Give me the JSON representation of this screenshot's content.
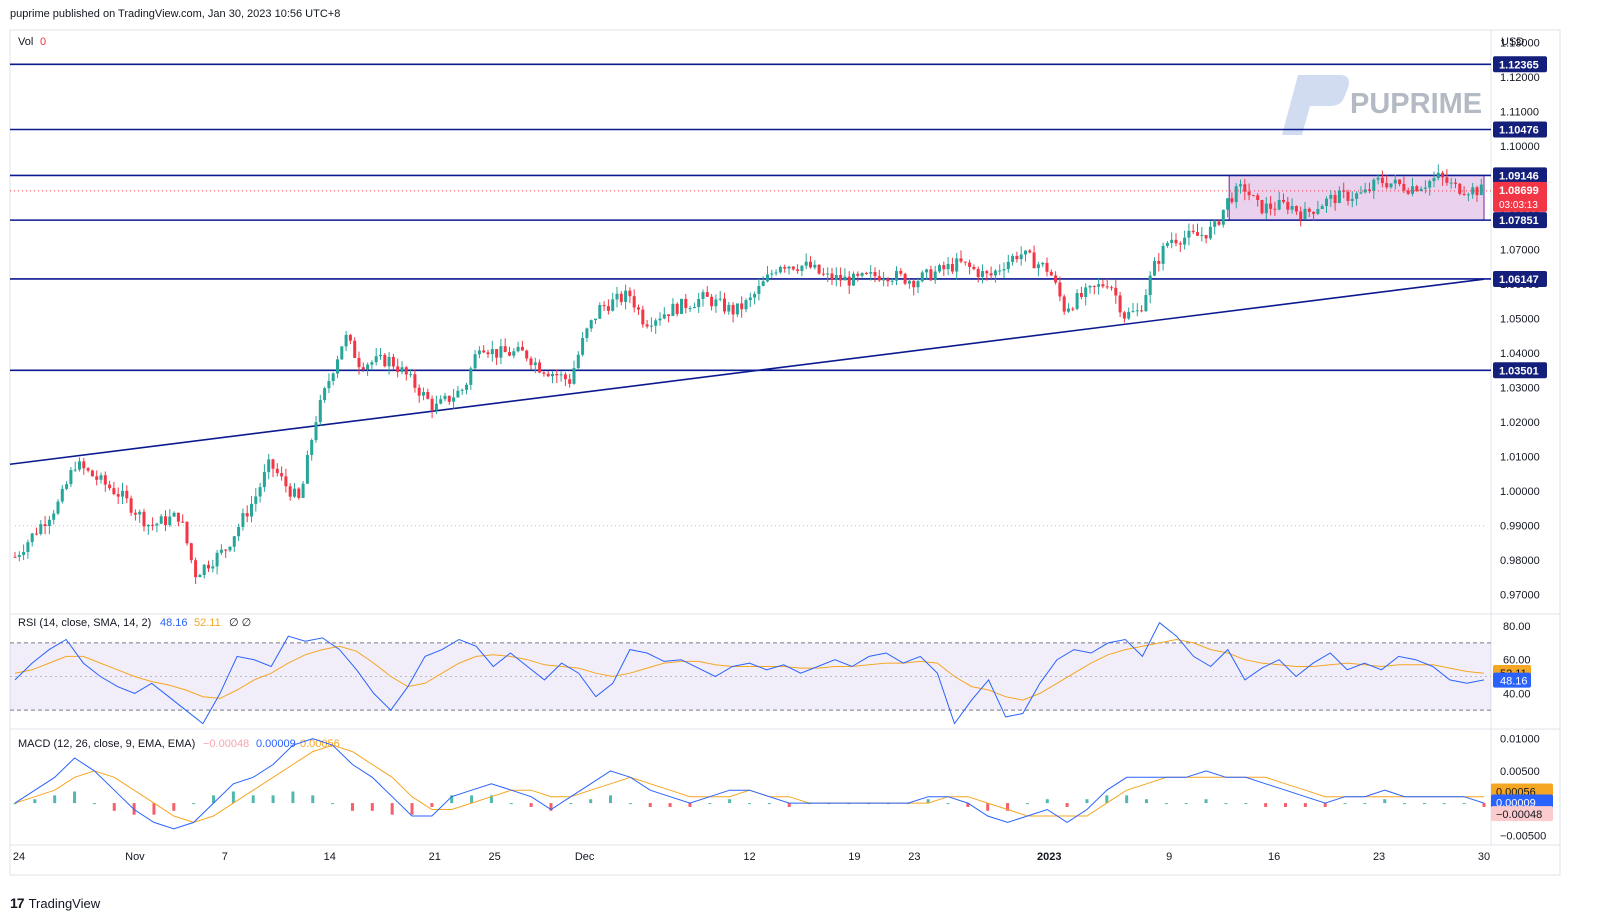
{
  "header": {
    "published_text": "puprime published on TradingView.com, Jan 30, 2023 10:56 UTC+8"
  },
  "footer": {
    "logo_glyph": "17",
    "brand": "TradingView"
  },
  "watermark": {
    "text": "PUPRIME"
  },
  "colors": {
    "up": "#26a69a",
    "down": "#f23645",
    "level_line": "#0c1a8f",
    "rsi_line": "#2962ff",
    "rsi_ma": "#f5a623",
    "macd_line": "#2962ff",
    "signal_line": "#f5a623",
    "range_box": "#e1bee7"
  },
  "chart_data": [
    {
      "type": "candlestick",
      "pair_currency": "USD",
      "vol_label": "Vol",
      "vol_value": "0",
      "ylim": [
        0.965,
        1.133
      ],
      "y_ticks": [
        "1.13000",
        "1.12000",
        "1.11000",
        "1.10000",
        "1.09000",
        "1.08000",
        "1.07000",
        "1.06000",
        "1.05000",
        "1.04000",
        "1.03000",
        "1.02000",
        "1.01000",
        "1.00000",
        "0.99000",
        "0.98000",
        "0.97000"
      ],
      "x_ticks": [
        "24",
        "Nov",
        "7",
        "14",
        "21",
        "25",
        "Dec",
        "12",
        "19",
        "23",
        "2023",
        "9",
        "16",
        "23",
        "30"
      ],
      "horizontal_levels": [
        {
          "value": 1.12365,
          "label": "1.12365"
        },
        {
          "value": 1.10476,
          "label": "1.10476"
        },
        {
          "value": 1.09146,
          "label": "1.09146"
        },
        {
          "value": 1.07851,
          "label": "1.07851"
        },
        {
          "value": 1.06147,
          "label": "1.06147"
        },
        {
          "value": 1.03501,
          "label": "1.03501"
        }
      ],
      "current_price": {
        "value": 1.08699,
        "label": "1.08699",
        "countdown": "03:03:13"
      },
      "trendline": {
        "start": {
          "date": "Oct 24",
          "price": 1.0078
        },
        "end": {
          "date": "Jan 30",
          "price": 1.0614
        }
      },
      "range_box": {
        "from": "Jan 13",
        "to": "Jan 30",
        "top": 1.09146,
        "bottom": 1.07851
      },
      "close_path": [
        {
          "date": "Oct 24",
          "close": 0.981
        },
        {
          "date": "Oct 27",
          "close": 0.997
        },
        {
          "date": "Oct 28",
          "close": 1.008
        },
        {
          "date": "Oct 31",
          "close": 0.999
        },
        {
          "date": "Nov 2",
          "close": 0.99
        },
        {
          "date": "Nov 4",
          "close": 0.993
        },
        {
          "date": "Nov 5",
          "close": 0.976
        },
        {
          "date": "Nov 7",
          "close": 0.983
        },
        {
          "date": "Nov 9",
          "close": 0.998
        },
        {
          "date": "Nov 10",
          "close": 1.008
        },
        {
          "date": "Nov 11",
          "close": 1.002
        },
        {
          "date": "Nov 12",
          "close": 0.997
        },
        {
          "date": "Nov 13",
          "close": 1.02
        },
        {
          "date": "Nov 14",
          "close": 1.033
        },
        {
          "date": "Nov 15",
          "close": 1.045
        },
        {
          "date": "Nov 16",
          "close": 1.037
        },
        {
          "date": "Nov 18",
          "close": 1.038
        },
        {
          "date": "Nov 19",
          "close": 1.034
        },
        {
          "date": "Nov 21",
          "close": 1.024
        },
        {
          "date": "Nov 23",
          "close": 1.03
        },
        {
          "date": "Nov 24",
          "close": 1.043
        },
        {
          "date": "Nov 25",
          "close": 1.04
        },
        {
          "date": "Nov 27",
          "close": 1.04
        },
        {
          "date": "Nov 28",
          "close": 1.036
        },
        {
          "date": "Nov 30",
          "close": 1.032
        },
        {
          "date": "Dec 1",
          "close": 1.045
        },
        {
          "date": "Dec 2",
          "close": 1.053
        },
        {
          "date": "Dec 4",
          "close": 1.057
        },
        {
          "date": "Dec 5",
          "close": 1.049
        },
        {
          "date": "Dec 7",
          "close": 1.053
        },
        {
          "date": "Dec 9",
          "close": 1.056
        },
        {
          "date": "Dec 11",
          "close": 1.052
        },
        {
          "date": "Dec 12",
          "close": 1.055
        },
        {
          "date": "Dec 14",
          "close": 1.066
        },
        {
          "date": "Dec 16",
          "close": 1.065
        },
        {
          "date": "Dec 17",
          "close": 1.062
        },
        {
          "date": "Dec 19",
          "close": 1.061
        },
        {
          "date": "Dec 21",
          "close": 1.063
        },
        {
          "date": "Dec 23",
          "close": 1.061
        },
        {
          "date": "Dec 26",
          "close": 1.066
        },
        {
          "date": "Dec 28",
          "close": 1.062
        },
        {
          "date": "Dec 29",
          "close": 1.066
        },
        {
          "date": "Dec 30",
          "close": 1.069
        },
        {
          "date": "Jan 1",
          "close": 1.064
        },
        {
          "date": "Jan 2",
          "close": 1.053
        },
        {
          "date": "Jan 3",
          "close": 1.056
        },
        {
          "date": "Jan 5",
          "close": 1.061
        },
        {
          "date": "Jan 6",
          "close": 1.051
        },
        {
          "date": "Jan 7",
          "close": 1.052
        },
        {
          "date": "Jan 8",
          "close": 1.065
        },
        {
          "date": "Jan 9",
          "close": 1.073
        },
        {
          "date": "Jan 11",
          "close": 1.074
        },
        {
          "date": "Jan 12",
          "close": 1.076
        },
        {
          "date": "Jan 13",
          "close": 1.085
        },
        {
          "date": "Jan 14",
          "close": 1.088
        },
        {
          "date": "Jan 15",
          "close": 1.082
        },
        {
          "date": "Jan 17",
          "close": 1.083
        },
        {
          "date": "Jan 18",
          "close": 1.08
        },
        {
          "date": "Jan 19",
          "close": 1.083
        },
        {
          "date": "Jan 20",
          "close": 1.085
        },
        {
          "date": "Jan 22",
          "close": 1.086
        },
        {
          "date": "Jan 23",
          "close": 1.09
        },
        {
          "date": "Jan 25",
          "close": 1.088
        },
        {
          "date": "Jan 26",
          "close": 1.089
        },
        {
          "date": "Jan 27",
          "close": 1.091
        },
        {
          "date": "Jan 28",
          "close": 1.088
        },
        {
          "date": "Jan 30",
          "close": 1.087
        }
      ]
    },
    {
      "type": "line",
      "indicator": "RSI",
      "title": "RSI (14, close, SMA, 14, 2)",
      "rsi_value": "48.16",
      "ma_value": "52.11",
      "extra": "∅ ∅",
      "ylim": [
        20,
        86
      ],
      "y_ticks": [
        "80.00",
        "60.00",
        "40.00"
      ],
      "bands": [
        70,
        30
      ],
      "series": [
        {
          "name": "RSI",
          "values": [
            48,
            58,
            66,
            72,
            58,
            50,
            44,
            40,
            46,
            38,
            30,
            22,
            40,
            62,
            60,
            56,
            74,
            71,
            73,
            66,
            54,
            40,
            30,
            44,
            62,
            66,
            72,
            68,
            56,
            64,
            56,
            48,
            58,
            52,
            38,
            46,
            66,
            64,
            59,
            60,
            55,
            50,
            56,
            58,
            54,
            57,
            52,
            56,
            60,
            56,
            62,
            64,
            58,
            62,
            52,
            22,
            36,
            48,
            26,
            28,
            46,
            60,
            66,
            64,
            70,
            72,
            62,
            82,
            74,
            62,
            56,
            66,
            48,
            55,
            60,
            50,
            58,
            64,
            54,
            58,
            54,
            62,
            60,
            56,
            48,
            46,
            48
          ]
        },
        {
          "name": "RSI-based MA",
          "values": [
            52,
            54,
            58,
            62,
            62,
            58,
            54,
            50,
            47,
            45,
            42,
            38,
            37,
            42,
            48,
            52,
            58,
            63,
            66,
            68,
            65,
            58,
            50,
            44,
            46,
            52,
            58,
            62,
            63,
            62,
            60,
            57,
            56,
            55,
            52,
            50,
            52,
            55,
            58,
            59,
            59,
            57,
            56,
            56,
            56,
            56,
            55,
            55,
            56,
            56,
            57,
            58,
            58,
            59,
            58,
            50,
            44,
            42,
            38,
            36,
            40,
            46,
            52,
            58,
            63,
            66,
            68,
            70,
            72,
            70,
            66,
            64,
            60,
            58,
            57,
            56,
            56,
            57,
            58,
            57,
            56,
            57,
            57,
            57,
            55,
            53,
            52
          ]
        }
      ]
    },
    {
      "type": "line",
      "indicator": "MACD",
      "title": "MACD (12, 26, close, 9, EMA, EMA)",
      "histogram_value": "−0.00048",
      "macd_value": "0.00009",
      "signal_value": "0.00056",
      "ylim": [
        -0.0062,
        0.0112
      ],
      "y_ticks": [
        "0.01000",
        "0.00500",
        "−0.00500"
      ],
      "price_labels": [
        "0.00056",
        "0.00009",
        "−0.00048"
      ],
      "series": [
        {
          "name": "MACD",
          "values": [
            0,
            0.002,
            0.004,
            0.007,
            0.005,
            0.002,
            -0.001,
            -0.003,
            -0.004,
            -0.003,
            0.0,
            0.003,
            0.004,
            0.006,
            0.009,
            0.01,
            0.009,
            0.006,
            0.004,
            0.001,
            -0.002,
            -0.002,
            0.001,
            0.002,
            0.003,
            0.002,
            0.001,
            -0.001,
            0.001,
            0.003,
            0.005,
            0.004,
            0.002,
            0.001,
            0.0,
            0.001,
            0.002,
            0.002,
            0.001,
            0.0,
            0.0,
            0.0,
            0.0,
            0.0,
            0.0,
            0.0,
            0.001,
            0.001,
            0.0,
            -0.002,
            -0.003,
            -0.002,
            -0.001,
            -0.003,
            -0.001,
            0.002,
            0.004,
            0.004,
            0.004,
            0.004,
            0.005,
            0.004,
            0.004,
            0.003,
            0.002,
            0.001,
            0.0,
            0.001,
            0.001,
            0.002,
            0.001,
            0.001,
            0.001,
            0.001,
            0.0
          ]
        },
        {
          "name": "Signal",
          "values": [
            0,
            0.001,
            0.002,
            0.004,
            0.005,
            0.004,
            0.002,
            0.0,
            -0.002,
            -0.003,
            -0.002,
            0.0,
            0.002,
            0.004,
            0.006,
            0.008,
            0.009,
            0.008,
            0.006,
            0.004,
            0.001,
            -0.001,
            -0.001,
            0.0,
            0.001,
            0.002,
            0.002,
            0.001,
            0.001,
            0.002,
            0.003,
            0.004,
            0.003,
            0.002,
            0.001,
            0.001,
            0.001,
            0.002,
            0.001,
            0.001,
            0.0,
            0.0,
            0.0,
            0.0,
            0.0,
            0.0,
            0.0,
            0.001,
            0.001,
            0.0,
            -0.001,
            -0.002,
            -0.002,
            -0.002,
            -0.002,
            0.0,
            0.002,
            0.003,
            0.004,
            0.004,
            0.004,
            0.004,
            0.004,
            0.004,
            0.003,
            0.002,
            0.001,
            0.001,
            0.001,
            0.001,
            0.001,
            0.001,
            0.001,
            0.001,
            0.001
          ]
        }
      ]
    }
  ]
}
